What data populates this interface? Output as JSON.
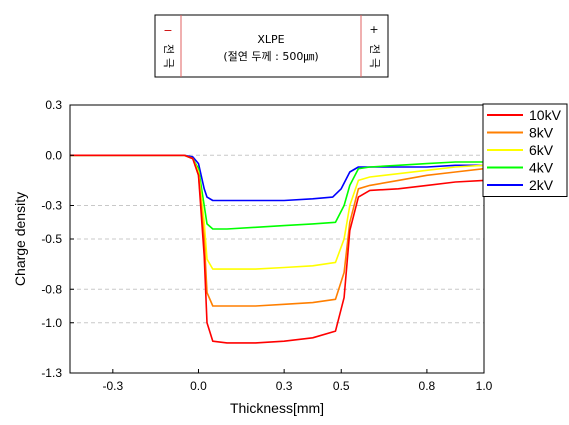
{
  "chart_data": {
    "type": "line",
    "xlabel": "Thickness[mm]",
    "ylabel": "Charge density",
    "xlim": [
      -0.45,
      1.0
    ],
    "ylim": [
      -1.3,
      0.3
    ],
    "xticks": [
      -0.3,
      0.0,
      0.3,
      0.5,
      0.8,
      1.0
    ],
    "xtick_labels": [
      "-0.3",
      "0.0",
      "0.3",
      "0.5",
      "0.8",
      "1.0"
    ],
    "yticks": [
      0.3,
      0.0,
      -0.3,
      -0.5,
      -0.8,
      -1.0,
      -1.3
    ],
    "ytick_labels": [
      "0.3",
      "0.0",
      "-0.3",
      "-0.5",
      "-0.8",
      "-1.0",
      "-1.3"
    ],
    "grid": "horizontal dashed",
    "legend_position": "right",
    "series": [
      {
        "name": "10kV",
        "color": "#ff0000",
        "points": [
          [
            -0.45,
            0
          ],
          [
            -0.05,
            0
          ],
          [
            -0.02,
            -0.02
          ],
          [
            0,
            -0.12
          ],
          [
            0.02,
            -0.6
          ],
          [
            0.03,
            -1.0
          ],
          [
            0.05,
            -1.11
          ],
          [
            0.1,
            -1.12
          ],
          [
            0.2,
            -1.12
          ],
          [
            0.3,
            -1.11
          ],
          [
            0.4,
            -1.09
          ],
          [
            0.48,
            -1.05
          ],
          [
            0.51,
            -0.85
          ],
          [
            0.53,
            -0.45
          ],
          [
            0.56,
            -0.25
          ],
          [
            0.6,
            -0.21
          ],
          [
            0.7,
            -0.2
          ],
          [
            0.8,
            -0.18
          ],
          [
            0.9,
            -0.16
          ],
          [
            1.0,
            -0.15
          ]
        ]
      },
      {
        "name": "8kV",
        "color": "#ff7f00",
        "points": [
          [
            -0.45,
            0
          ],
          [
            -0.05,
            0
          ],
          [
            -0.02,
            -0.02
          ],
          [
            0,
            -0.12
          ],
          [
            0.02,
            -0.5
          ],
          [
            0.03,
            -0.82
          ],
          [
            0.05,
            -0.9
          ],
          [
            0.1,
            -0.9
          ],
          [
            0.2,
            -0.9
          ],
          [
            0.3,
            -0.89
          ],
          [
            0.4,
            -0.88
          ],
          [
            0.48,
            -0.86
          ],
          [
            0.51,
            -0.7
          ],
          [
            0.53,
            -0.4
          ],
          [
            0.56,
            -0.2
          ],
          [
            0.6,
            -0.18
          ],
          [
            0.7,
            -0.15
          ],
          [
            0.8,
            -0.12
          ],
          [
            0.9,
            -0.1
          ],
          [
            1.0,
            -0.08
          ]
        ]
      },
      {
        "name": "6kV",
        "color": "#ffff00",
        "points": [
          [
            -0.45,
            0
          ],
          [
            -0.05,
            0
          ],
          [
            -0.02,
            -0.02
          ],
          [
            0,
            -0.1
          ],
          [
            0.02,
            -0.4
          ],
          [
            0.03,
            -0.62
          ],
          [
            0.05,
            -0.68
          ],
          [
            0.1,
            -0.68
          ],
          [
            0.2,
            -0.68
          ],
          [
            0.3,
            -0.67
          ],
          [
            0.4,
            -0.66
          ],
          [
            0.48,
            -0.64
          ],
          [
            0.51,
            -0.5
          ],
          [
            0.53,
            -0.3
          ],
          [
            0.56,
            -0.15
          ],
          [
            0.6,
            -0.13
          ],
          [
            0.7,
            -0.11
          ],
          [
            0.8,
            -0.09
          ],
          [
            0.9,
            -0.07
          ],
          [
            1.0,
            -0.06
          ]
        ]
      },
      {
        "name": "4kV",
        "color": "#00ff00",
        "points": [
          [
            -0.45,
            0
          ],
          [
            -0.05,
            0
          ],
          [
            -0.02,
            -0.02
          ],
          [
            0,
            -0.08
          ],
          [
            0.02,
            -0.3
          ],
          [
            0.03,
            -0.41
          ],
          [
            0.05,
            -0.44
          ],
          [
            0.1,
            -0.44
          ],
          [
            0.2,
            -0.43
          ],
          [
            0.3,
            -0.42
          ],
          [
            0.4,
            -0.41
          ],
          [
            0.48,
            -0.4
          ],
          [
            0.51,
            -0.3
          ],
          [
            0.53,
            -0.18
          ],
          [
            0.56,
            -0.08
          ],
          [
            0.6,
            -0.07
          ],
          [
            0.7,
            -0.06
          ],
          [
            0.8,
            -0.05
          ],
          [
            0.9,
            -0.04
          ],
          [
            1.0,
            -0.04
          ]
        ]
      },
      {
        "name": "2kV",
        "color": "#0000ff",
        "points": [
          [
            -0.45,
            0
          ],
          [
            -0.05,
            0
          ],
          [
            -0.02,
            -0.01
          ],
          [
            0,
            -0.05
          ],
          [
            0.02,
            -0.2
          ],
          [
            0.03,
            -0.25
          ],
          [
            0.05,
            -0.27
          ],
          [
            0.1,
            -0.27
          ],
          [
            0.2,
            -0.27
          ],
          [
            0.3,
            -0.27
          ],
          [
            0.4,
            -0.26
          ],
          [
            0.47,
            -0.25
          ],
          [
            0.5,
            -0.2
          ],
          [
            0.53,
            -0.1
          ],
          [
            0.56,
            -0.07
          ],
          [
            0.6,
            -0.07
          ],
          [
            0.7,
            -0.07
          ],
          [
            0.8,
            -0.07
          ],
          [
            0.9,
            -0.06
          ],
          [
            1.0,
            -0.06
          ]
        ]
      }
    ]
  },
  "specimen": {
    "title": "XLPE",
    "subtitle": "(절연 두께 : 500㎛)",
    "left_electrode": {
      "sign": "−",
      "label_top": "전",
      "label_bottom": "극"
    },
    "right_electrode": {
      "sign": "+",
      "label_top": "전",
      "label_bottom": "극"
    }
  }
}
